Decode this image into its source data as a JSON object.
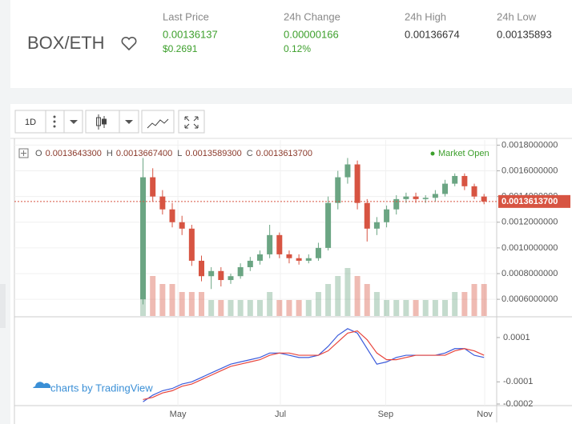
{
  "header": {
    "pair": "BOX/ETH",
    "stats": [
      {
        "label": "Last Price",
        "value": "0.00136137",
        "sub": "$0.2691"
      },
      {
        "label": "24h Change",
        "value": "0.00000166",
        "sub": "0.12%"
      },
      {
        "label": "24h High",
        "value": "0.00136674"
      },
      {
        "label": "24h Low",
        "value": "0.00135893"
      }
    ]
  },
  "toolbar": {
    "interval": "1D"
  },
  "chart_data": {
    "type": "candlestick",
    "categories": [
      null,
      null,
      null,
      null,
      null,
      null,
      null,
      null,
      null,
      null,
      null,
      null,
      null,
      null,
      null,
      null,
      null,
      null,
      null,
      null,
      null,
      null,
      null,
      null,
      null,
      null,
      null,
      null,
      null,
      null,
      null,
      null,
      null,
      null,
      null,
      null
    ],
    "open": [
      0.0006,
      0.00155,
      0.0014,
      0.0013,
      0.0012,
      0.00115,
      0.0009,
      0.00078,
      0.00082,
      0.00075,
      0.00078,
      0.00085,
      0.0009,
      0.00095,
      0.0011,
      0.00095,
      0.00092,
      0.0009,
      0.00092,
      0.001,
      0.00135,
      0.00155,
      0.00165,
      0.00135,
      0.00115,
      0.0012,
      0.0013,
      0.00138,
      0.0014,
      0.00138,
      0.00139,
      0.00142,
      0.0015,
      0.00156,
      0.00148,
      0.0014
    ],
    "high": [
      0.0017,
      0.00162,
      0.00145,
      0.00135,
      0.00125,
      0.00118,
      0.00094,
      0.00085,
      0.00085,
      0.0008,
      0.00088,
      0.00093,
      0.00098,
      0.00118,
      0.00112,
      0.00098,
      0.00095,
      0.00095,
      0.00104,
      0.0014,
      0.0016,
      0.0017,
      0.00168,
      0.00138,
      0.00124,
      0.00133,
      0.00141,
      0.00143,
      0.00143,
      0.00141,
      0.00145,
      0.00153,
      0.00158,
      0.00158,
      0.0015,
      0.00142
    ],
    "low": [
      0.00056,
      0.00136,
      0.00126,
      0.00116,
      0.0011,
      0.00086,
      0.00074,
      0.00068,
      0.0007,
      0.00072,
      0.00076,
      0.00082,
      0.00087,
      0.00092,
      0.00092,
      0.00088,
      0.00087,
      0.00088,
      0.0009,
      0.00098,
      0.0013,
      0.0015,
      0.0013,
      0.00105,
      0.0011,
      0.00116,
      0.00126,
      0.00135,
      0.00135,
      0.00135,
      0.00136,
      0.0014,
      0.00148,
      0.00145,
      0.00138,
      0.00134
    ],
    "close": [
      0.00155,
      0.0014,
      0.0013,
      0.0012,
      0.00115,
      0.0009,
      0.00078,
      0.00082,
      0.00075,
      0.00078,
      0.00085,
      0.0009,
      0.00095,
      0.0011,
      0.00095,
      0.00092,
      0.0009,
      0.00092,
      0.001,
      0.00135,
      0.00155,
      0.00165,
      0.00135,
      0.00115,
      0.0012,
      0.0013,
      0.00138,
      0.0014,
      0.00138,
      0.00139,
      0.00142,
      0.0015,
      0.00156,
      0.00148,
      0.0014,
      0.00136137
    ],
    "volume": [
      3,
      5,
      4,
      4,
      3,
      3,
      3,
      2,
      2,
      2,
      2,
      2,
      2,
      3,
      2,
      2,
      2,
      2,
      3,
      4,
      5,
      6,
      5,
      4,
      3,
      2,
      2,
      2,
      2,
      2,
      2,
      2,
      3,
      3,
      4,
      4
    ],
    "up_color": "#6ba583",
    "down_color": "#d75442",
    "ohlc_legend": [
      {
        "key": "O",
        "value": 0.00136433,
        "label": "0.0013643300"
      },
      {
        "key": "H",
        "value": 0.00136674,
        "label": "0.0013667400"
      },
      {
        "key": "L",
        "value": 0.00135893,
        "label": "0.0013589300"
      },
      {
        "key": "C",
        "value": 0.00136137,
        "label": "0.0013613700"
      }
    ],
    "status": "Market Open",
    "last_price": {
      "value": 0.00136137,
      "label": "0.0013613700"
    },
    "xlim": [
      -13.2,
      36.3
    ],
    "xticks": [
      {
        "value": 3.58,
        "label": "May"
      },
      {
        "value": 14.1,
        "label": "Jul"
      },
      {
        "value": 24.9,
        "label": "Sep"
      },
      {
        "value": 35.07,
        "label": "Nov"
      }
    ],
    "ylim": [
      0.00047,
      0.00184
    ],
    "yticks": [
      {
        "value": 0.0006,
        "label": "0.0006000000"
      },
      {
        "value": 0.0008,
        "label": "0.0008000000"
      },
      {
        "value": 0.001,
        "label": "0.0010000000"
      },
      {
        "value": 0.0012,
        "label": "0.0012000000"
      },
      {
        "value": 0.0014,
        "label": "0.0014000000"
      },
      {
        "value": 0.0016,
        "label": "0.0016000000"
      },
      {
        "value": 0.0018,
        "label": "0.0018000000"
      }
    ],
    "grid": true,
    "macd": {
      "y2lim": [
        -0.0002,
        0.00019
      ],
      "y2ticks": [
        -0.0002,
        -0.0001,
        0.0001
      ],
      "series": [
        {
          "color": "#3b5bdb",
          "values": [
            -0.00019,
            -0.00016,
            -0.00014,
            -0.00013,
            -0.00011,
            -0.0001,
            -8e-05,
            -6e-05,
            -4e-05,
            -2e-05,
            -1e-05,
            0,
            1e-05,
            3e-05,
            3e-05,
            2e-05,
            1e-05,
            1e-05,
            2e-05,
            6e-05,
            0.00011,
            0.00014,
            0.00012,
            5e-05,
            -2e-05,
            -1e-05,
            1e-05,
            2e-05,
            2e-05,
            2e-05,
            2e-05,
            3e-05,
            5e-05,
            5e-05,
            2e-05,
            1e-05
          ]
        },
        {
          "color": "#e8453c",
          "values": [
            -0.00018,
            -0.00017,
            -0.00015,
            -0.00014,
            -0.00012,
            -0.00011,
            -9e-05,
            -7e-05,
            -5e-05,
            -3e-05,
            -2e-05,
            -1e-05,
            0,
            2e-05,
            3e-05,
            3e-05,
            2e-05,
            2e-05,
            2e-05,
            4e-05,
            8e-05,
            0.00012,
            0.00013,
            9e-05,
            3e-05,
            0,
            0,
            1e-05,
            2e-05,
            2e-05,
            2e-05,
            2e-05,
            4e-05,
            5e-05,
            4e-05,
            2e-05
          ]
        }
      ]
    },
    "watermark": "charts by TradingView"
  }
}
